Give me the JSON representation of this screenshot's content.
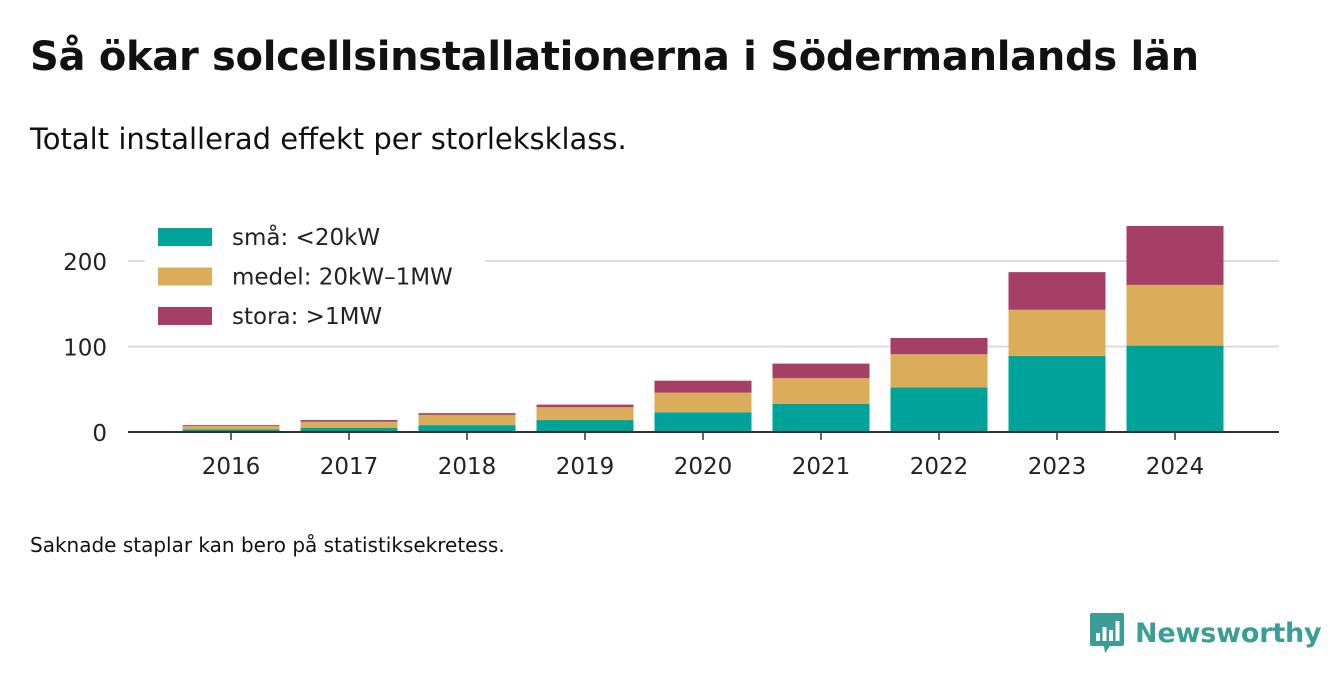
{
  "title": "Så ökar solcellsinstallationerna i Södermanlands län",
  "subtitle": "Totalt installerad effekt per storleksklass.",
  "footnote": "Saknade staplar kan bero på statistiksekretess.",
  "brand": {
    "name": "Newsworthy",
    "color": "#3a9e97",
    "icon": "newsworthy-logo-icon"
  },
  "chart_data": {
    "type": "bar",
    "stacked": true,
    "categories": [
      "2016",
      "2017",
      "2018",
      "2019",
      "2020",
      "2021",
      "2022",
      "2023",
      "2024"
    ],
    "series": [
      {
        "name": "små: <20kW",
        "color": "#00a39a",
        "values": [
          3,
          5,
          8,
          14,
          23,
          33,
          52,
          89,
          101
        ]
      },
      {
        "name": "medel: 20kW–1MW",
        "color": "#dbac5a",
        "values": [
          4,
          7,
          12,
          15,
          23,
          30,
          39,
          54,
          71
        ]
      },
      {
        "name": "stora: >1MW",
        "color": "#a63f66",
        "values": [
          1,
          2,
          2,
          3,
          14,
          17,
          19,
          44,
          69
        ]
      }
    ],
    "yticks": [
      0,
      100,
      200
    ],
    "ylim": [
      0,
      250
    ],
    "xlabel": "",
    "ylabel": "",
    "grid": true,
    "legend": "top-left"
  }
}
